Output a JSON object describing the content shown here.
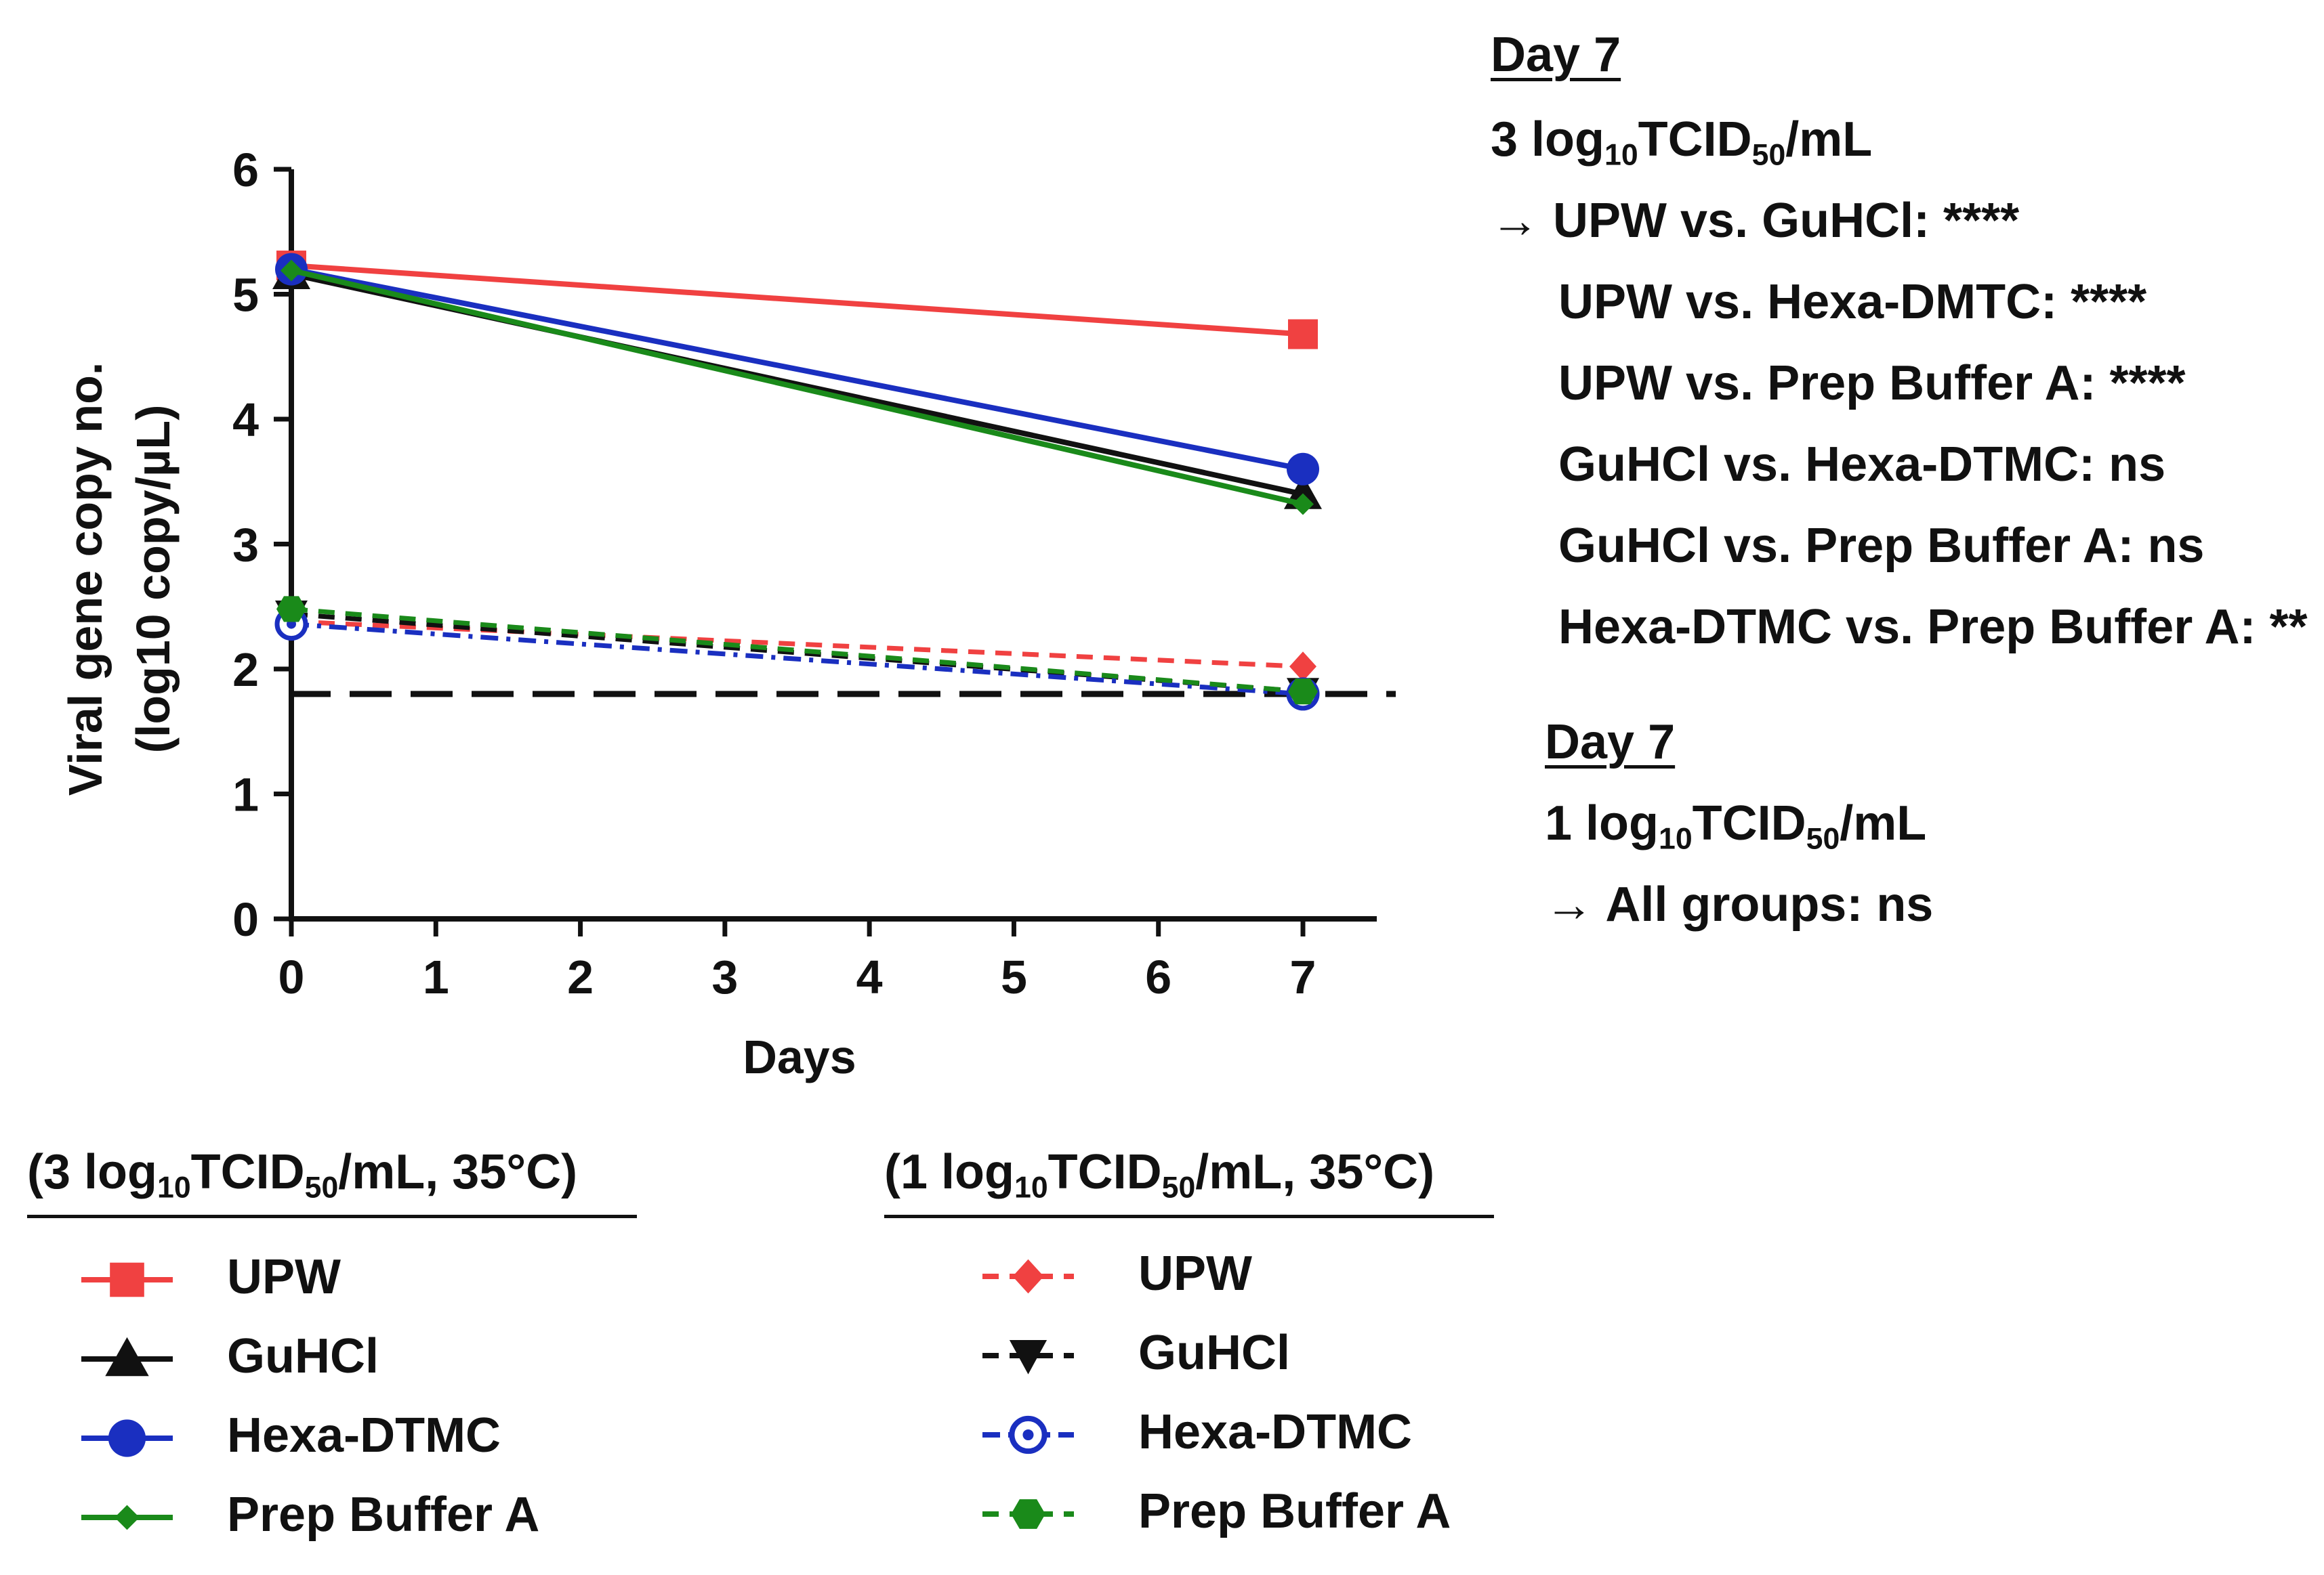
{
  "chart_data": {
    "type": "line",
    "x": [
      0,
      7
    ],
    "xlabel": "Days",
    "ylabel_line1": "Viral gene copy no.",
    "ylabel_line2": "(log10 copy/µL)",
    "xlim": [
      0,
      7.5
    ],
    "ylim": [
      0,
      6
    ],
    "xticks": [
      "0",
      "1",
      "2",
      "3",
      "4",
      "5",
      "6",
      "7"
    ],
    "yticks": [
      "0",
      "1",
      "2",
      "3",
      "4",
      "5",
      "6"
    ],
    "detection_limit": 1.8,
    "series": [
      {
        "name": "UPW",
        "group": "3 log10 TCID50/mL, 35°C",
        "values": [
          5.23,
          4.68
        ],
        "color": "#f04141",
        "dash": "solid",
        "marker": "square"
      },
      {
        "name": "GuHCl",
        "group": "3 log10 TCID50/mL, 35°C",
        "values": [
          5.16,
          3.4
        ],
        "color": "#111111",
        "dash": "solid",
        "marker": "triangle-up"
      },
      {
        "name": "Hexa-DTMC",
        "group": "3 log10 TCID50/mL, 35°C",
        "values": [
          5.2,
          3.6
        ],
        "color": "#1a2fc0",
        "dash": "solid",
        "marker": "circle"
      },
      {
        "name": "Prep Buffer A",
        "group": "3 log10 TCID50/mL, 35°C",
        "values": [
          5.19,
          3.32
        ],
        "color": "#1a8a1a",
        "dash": "solid",
        "marker": "small-diamond"
      },
      {
        "name": "UPW",
        "group": "1 log10 TCID50/mL, 35°C",
        "values": [
          2.38,
          2.02
        ],
        "color": "#f04141",
        "dash": "dashed",
        "marker": "diamond"
      },
      {
        "name": "GuHCl",
        "group": "1 log10 TCID50/mL, 35°C",
        "values": [
          2.44,
          1.82
        ],
        "color": "#111111",
        "dash": "dashed",
        "marker": "triangle-down"
      },
      {
        "name": "Hexa-DTMC",
        "group": "1 log10 TCID50/mL, 35°C",
        "values": [
          2.36,
          1.8
        ],
        "color": "#1a2fc0",
        "dash": "dashdot",
        "marker": "ring"
      },
      {
        "name": "Prep Buffer A",
        "group": "1 log10 TCID50/mL, 35°C",
        "values": [
          2.48,
          1.82
        ],
        "color": "#1a8a1a",
        "dash": "dashed",
        "marker": "hexagon"
      }
    ]
  },
  "annotations": {
    "block1": {
      "heading": "Day 7",
      "dose": "3 log",
      "dose_sub": "10",
      "dose_unit": "TCID",
      "dose_unit_sub": "50",
      "dose_tail": "/mL",
      "arrow": "→",
      "lines": [
        "UPW vs. GuHCl: ****",
        "UPW vs. Hexa-DMTC: ****",
        "UPW vs. Prep Buffer A: ****",
        "GuHCl vs. Hexa-DTMC: ns",
        "GuHCl vs. Prep Buffer A: ns",
        "Hexa-DTMC vs. Prep Buffer A: **"
      ]
    },
    "block2": {
      "heading": "Day 7",
      "dose": "1 log",
      "dose_sub": "10",
      "dose_unit": "TCID",
      "dose_unit_sub": "50",
      "dose_tail": "/mL",
      "arrow": "→",
      "line": "All groups: ns"
    }
  },
  "legend": {
    "group1": {
      "pre": "(3 log",
      "sub": "10",
      "mid": "TCID",
      "sub2": "50",
      "post": "/mL, 35°C)"
    },
    "group2": {
      "pre": "(1 log",
      "sub": "10",
      "mid": "TCID",
      "sub2": "50",
      "post": "/mL, 35°C)"
    }
  }
}
